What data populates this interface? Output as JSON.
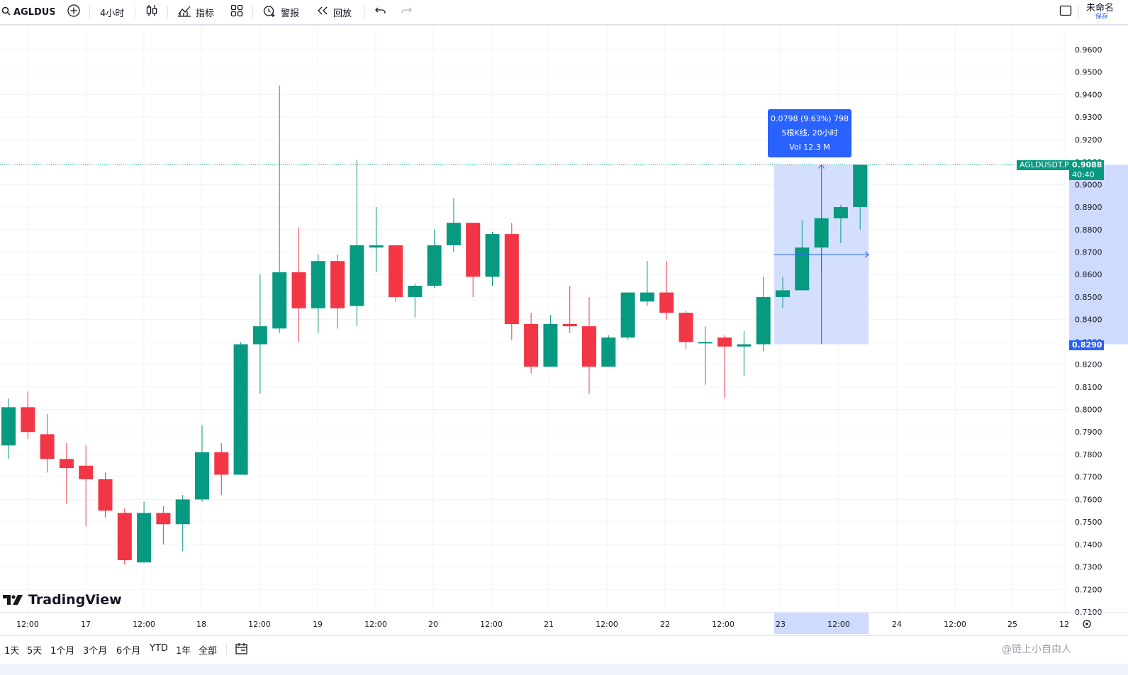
{
  "toolbar": {
    "symbol": "AGLDUSDT",
    "interval": "4小时",
    "indicators": "指标",
    "alerts": "警报",
    "replay": "回放",
    "layout_name": "未命名",
    "save": "保存"
  },
  "bottombar": {
    "ranges": [
      "1天",
      "5天",
      "1个月",
      "3个月",
      "6个月",
      "YTD",
      "1年",
      "全部"
    ],
    "watermark": "@链上小自由人"
  },
  "logo": "TradingView",
  "measure": {
    "line1": "0.0798 (9.63%) 798",
    "line2": "5根K线, 20小时",
    "line3": "Vol 12.3 M"
  },
  "price_labels": {
    "symbol_tag": "AGLDUSDT.P",
    "last_price": "0.9088",
    "countdown": "40:40",
    "range_low": "0.8290"
  },
  "colors": {
    "up": "#089981",
    "down": "#f23645",
    "measure": "#2962ff",
    "measure_fill": "#cfdbfd"
  },
  "chart_data": {
    "type": "candlestick",
    "interval": "4h",
    "ylim": [
      0.71,
      0.965
    ],
    "y_ticks": [
      "0.7100",
      "0.7200",
      "0.7300",
      "0.7400",
      "0.7500",
      "0.7600",
      "0.7700",
      "0.7800",
      "0.7900",
      "0.8000",
      "0.8100",
      "0.8200",
      "0.8300",
      "0.8400",
      "0.8500",
      "0.8600",
      "0.8700",
      "0.8800",
      "0.8900",
      "0.9000",
      "0.9100",
      "0.9200",
      "0.9300",
      "0.9400",
      "0.9500",
      "0.9600"
    ],
    "x_ticks": [
      "12:00",
      "17",
      "12:00",
      "18",
      "12:00",
      "19",
      "12:00",
      "20",
      "12:00",
      "21",
      "12:00",
      "22",
      "12:00",
      "23",
      "12:00",
      "24",
      "12:00",
      "25",
      "12"
    ],
    "candles": [
      {
        "o": 0.784,
        "h": 0.805,
        "l": 0.778,
        "c": 0.801
      },
      {
        "o": 0.801,
        "h": 0.808,
        "l": 0.787,
        "c": 0.79
      },
      {
        "o": 0.789,
        "h": 0.798,
        "l": 0.772,
        "c": 0.778
      },
      {
        "o": 0.778,
        "h": 0.785,
        "l": 0.758,
        "c": 0.774
      },
      {
        "o": 0.775,
        "h": 0.784,
        "l": 0.748,
        "c": 0.769
      },
      {
        "o": 0.769,
        "h": 0.772,
        "l": 0.752,
        "c": 0.755
      },
      {
        "o": 0.754,
        "h": 0.756,
        "l": 0.731,
        "c": 0.733
      },
      {
        "o": 0.732,
        "h": 0.759,
        "l": 0.732,
        "c": 0.754
      },
      {
        "o": 0.754,
        "h": 0.757,
        "l": 0.74,
        "c": 0.749
      },
      {
        "o": 0.749,
        "h": 0.762,
        "l": 0.737,
        "c": 0.76
      },
      {
        "o": 0.76,
        "h": 0.793,
        "l": 0.759,
        "c": 0.781
      },
      {
        "o": 0.781,
        "h": 0.785,
        "l": 0.762,
        "c": 0.771
      },
      {
        "o": 0.771,
        "h": 0.83,
        "l": 0.771,
        "c": 0.829
      },
      {
        "o": 0.829,
        "h": 0.86,
        "l": 0.807,
        "c": 0.837
      },
      {
        "o": 0.836,
        "h": 0.944,
        "l": 0.834,
        "c": 0.861
      },
      {
        "o": 0.861,
        "h": 0.881,
        "l": 0.83,
        "c": 0.845
      },
      {
        "o": 0.845,
        "h": 0.869,
        "l": 0.834,
        "c": 0.866
      },
      {
        "o": 0.866,
        "h": 0.869,
        "l": 0.836,
        "c": 0.845
      },
      {
        "o": 0.846,
        "h": 0.911,
        "l": 0.837,
        "c": 0.873
      },
      {
        "o": 0.872,
        "h": 0.89,
        "l": 0.861,
        "c": 0.873
      },
      {
        "o": 0.873,
        "h": 0.873,
        "l": 0.848,
        "c": 0.85
      },
      {
        "o": 0.85,
        "h": 0.856,
        "l": 0.841,
        "c": 0.855
      },
      {
        "o": 0.855,
        "h": 0.88,
        "l": 0.854,
        "c": 0.873
      },
      {
        "o": 0.873,
        "h": 0.894,
        "l": 0.87,
        "c": 0.883
      },
      {
        "o": 0.883,
        "h": 0.883,
        "l": 0.85,
        "c": 0.859
      },
      {
        "o": 0.859,
        "h": 0.879,
        "l": 0.855,
        "c": 0.878
      },
      {
        "o": 0.878,
        "h": 0.883,
        "l": 0.831,
        "c": 0.838
      },
      {
        "o": 0.838,
        "h": 0.843,
        "l": 0.816,
        "c": 0.819
      },
      {
        "o": 0.819,
        "h": 0.842,
        "l": 0.819,
        "c": 0.838
      },
      {
        "o": 0.838,
        "h": 0.855,
        "l": 0.834,
        "c": 0.837
      },
      {
        "o": 0.837,
        "h": 0.85,
        "l": 0.807,
        "c": 0.819
      },
      {
        "o": 0.819,
        "h": 0.833,
        "l": 0.819,
        "c": 0.832
      },
      {
        "o": 0.832,
        "h": 0.852,
        "l": 0.831,
        "c": 0.852
      },
      {
        "o": 0.848,
        "h": 0.866,
        "l": 0.846,
        "c": 0.852
      },
      {
        "o": 0.852,
        "h": 0.866,
        "l": 0.84,
        "c": 0.843
      },
      {
        "o": 0.843,
        "h": 0.844,
        "l": 0.827,
        "c": 0.83
      },
      {
        "o": 0.83,
        "h": 0.837,
        "l": 0.811,
        "c": 0.83
      },
      {
        "o": 0.832,
        "h": 0.833,
        "l": 0.805,
        "c": 0.828
      },
      {
        "o": 0.828,
        "h": 0.835,
        "l": 0.815,
        "c": 0.829
      },
      {
        "o": 0.829,
        "h": 0.859,
        "l": 0.826,
        "c": 0.85
      },
      {
        "o": 0.85,
        "h": 0.859,
        "l": 0.845,
        "c": 0.853
      },
      {
        "o": 0.853,
        "h": 0.884,
        "l": 0.853,
        "c": 0.872
      },
      {
        "o": 0.872,
        "h": 0.886,
        "l": 0.859,
        "c": 0.885
      },
      {
        "o": 0.885,
        "h": 0.891,
        "l": 0.874,
        "c": 0.89
      },
      {
        "o": 0.89,
        "h": 0.9088,
        "l": 0.88,
        "c": 0.9088
      }
    ]
  }
}
